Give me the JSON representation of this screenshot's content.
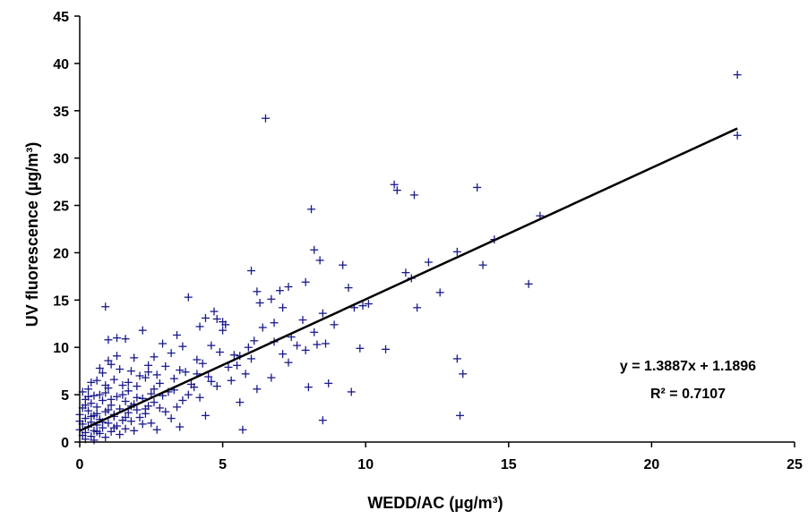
{
  "chart_data": {
    "type": "scatter",
    "xlabel": "WEDD/AC (µg/m³)",
    "ylabel": "UV fluorescence (µg/m³)",
    "xlim": [
      0,
      25
    ],
    "ylim": [
      0,
      45
    ],
    "xticks": [
      0,
      5,
      10,
      15,
      20,
      25
    ],
    "yticks": [
      0,
      5,
      10,
      15,
      20,
      25,
      30,
      35,
      40,
      45
    ],
    "grid": false,
    "marker": "+",
    "colors": {
      "points": "#1a1a8c",
      "trendline": "#000000"
    },
    "trendline": {
      "slope": 1.3887,
      "intercept": 1.1896,
      "equation": "y = 1.3887x + 1.1896",
      "r2_label": "R² = 0.7107"
    },
    "points": [
      [
        23.0,
        38.8
      ],
      [
        23.0,
        32.4
      ],
      [
        6.5,
        34.2
      ],
      [
        11.0,
        27.2
      ],
      [
        11.1,
        26.6
      ],
      [
        11.7,
        26.1
      ],
      [
        13.9,
        26.9
      ],
      [
        8.1,
        24.6
      ],
      [
        16.1,
        23.9
      ],
      [
        14.5,
        21.4
      ],
      [
        8.2,
        20.3
      ],
      [
        13.2,
        20.1
      ],
      [
        8.4,
        19.2
      ],
      [
        9.2,
        18.7
      ],
      [
        12.2,
        19.0
      ],
      [
        14.1,
        18.7
      ],
      [
        6.0,
        18.1
      ],
      [
        11.4,
        17.9
      ],
      [
        11.6,
        17.3
      ],
      [
        7.9,
        16.9
      ],
      [
        15.7,
        16.7
      ],
      [
        6.2,
        15.9
      ],
      [
        7.0,
        16.0
      ],
      [
        7.3,
        16.4
      ],
      [
        9.4,
        16.3
      ],
      [
        12.6,
        15.8
      ],
      [
        3.8,
        15.3
      ],
      [
        6.7,
        15.1
      ],
      [
        6.3,
        14.7
      ],
      [
        0.9,
        14.3
      ],
      [
        7.1,
        14.2
      ],
      [
        9.6,
        14.2
      ],
      [
        11.8,
        14.2
      ],
      [
        9.9,
        14.4
      ],
      [
        8.5,
        13.6
      ],
      [
        4.7,
        13.8
      ],
      [
        4.4,
        13.1
      ],
      [
        4.8,
        13.0
      ],
      [
        5.0,
        12.7
      ],
      [
        6.8,
        12.6
      ],
      [
        4.2,
        12.2
      ],
      [
        5.1,
        12.4
      ],
      [
        2.2,
        11.8
      ],
      [
        3.4,
        11.3
      ],
      [
        8.2,
        11.6
      ],
      [
        1.3,
        11.0
      ],
      [
        1.6,
        10.9
      ],
      [
        6.1,
        10.7
      ],
      [
        6.8,
        10.6
      ],
      [
        7.4,
        11.1
      ],
      [
        8.6,
        10.4
      ],
      [
        2.9,
        10.4
      ],
      [
        3.6,
        10.1
      ],
      [
        5.9,
        10.0
      ],
      [
        7.6,
        10.2
      ],
      [
        8.3,
        10.3
      ],
      [
        9.8,
        9.9
      ],
      [
        10.7,
        9.8
      ],
      [
        4.9,
        9.5
      ],
      [
        5.4,
        9.2
      ],
      [
        7.1,
        9.3
      ],
      [
        7.9,
        9.7
      ],
      [
        2.6,
        9.0
      ],
      [
        3.2,
        9.4
      ],
      [
        1.9,
        8.9
      ],
      [
        4.1,
        8.7
      ],
      [
        5.6,
        9.1
      ],
      [
        6.0,
        8.8
      ],
      [
        7.3,
        8.4
      ],
      [
        13.2,
        8.8
      ],
      [
        1.0,
        8.6
      ],
      [
        1.1,
        8.2
      ],
      [
        2.4,
        8.1
      ],
      [
        3.0,
        8.0
      ],
      [
        4.3,
        8.3
      ],
      [
        0.7,
        7.8
      ],
      [
        1.4,
        7.7
      ],
      [
        1.8,
        7.5
      ],
      [
        3.5,
        7.6
      ],
      [
        5.2,
        7.9
      ],
      [
        13.4,
        7.2
      ],
      [
        0.8,
        7.3
      ],
      [
        2.1,
        7.0
      ],
      [
        2.7,
        7.1
      ],
      [
        3.7,
        7.4
      ],
      [
        4.5,
        6.9
      ],
      [
        5.8,
        7.2
      ],
      [
        6.7,
        6.8
      ],
      [
        1.2,
        6.6
      ],
      [
        2.3,
        6.8
      ],
      [
        0.4,
        6.3
      ],
      [
        0.6,
        6.5
      ],
      [
        2.8,
        6.2
      ],
      [
        3.9,
        6.1
      ],
      [
        4.6,
        6.4
      ],
      [
        8.0,
        5.8
      ],
      [
        8.7,
        6.2
      ],
      [
        1.5,
        6.0
      ],
      [
        2.0,
        5.9
      ],
      [
        0.3,
        5.6
      ],
      [
        1.0,
        5.7
      ],
      [
        3.3,
        5.5
      ],
      [
        4.0,
        5.8
      ],
      [
        6.2,
        5.6
      ],
      [
        0.1,
        5.3
      ],
      [
        0.9,
        5.2
      ],
      [
        1.7,
        5.4
      ],
      [
        2.5,
        5.1
      ],
      [
        3.1,
        5.3
      ],
      [
        9.5,
        5.3
      ],
      [
        0.5,
        4.9
      ],
      [
        1.3,
        4.8
      ],
      [
        2.2,
        4.6
      ],
      [
        2.9,
        4.9
      ],
      [
        4.2,
        4.7
      ],
      [
        0.2,
        4.5
      ],
      [
        0.8,
        4.4
      ],
      [
        1.6,
        4.3
      ],
      [
        2.6,
        4.2
      ],
      [
        3.6,
        4.4
      ],
      [
        5.6,
        4.2
      ],
      [
        0.4,
        4.1
      ],
      [
        1.1,
        3.9
      ],
      [
        1.9,
        4.0
      ],
      [
        2.4,
        3.8
      ],
      [
        3.4,
        3.7
      ],
      [
        0.1,
        3.6
      ],
      [
        0.6,
        3.7
      ],
      [
        1.4,
        3.5
      ],
      [
        2.0,
        3.4
      ],
      [
        2.8,
        3.6
      ],
      [
        0.3,
        3.3
      ],
      [
        0.9,
        3.2
      ],
      [
        1.7,
        3.1
      ],
      [
        2.3,
        3.0
      ],
      [
        3.0,
        3.2
      ],
      [
        4.4,
        2.8
      ],
      [
        13.3,
        2.8
      ],
      [
        0.0,
        2.9
      ],
      [
        0.5,
        2.8
      ],
      [
        1.2,
        2.7
      ],
      [
        2.1,
        2.6
      ],
      [
        0.2,
        2.5
      ],
      [
        0.7,
        2.4
      ],
      [
        1.5,
        2.3
      ],
      [
        3.2,
        2.5
      ],
      [
        8.5,
        2.3
      ],
      [
        0.0,
        2.2
      ],
      [
        0.4,
        2.1
      ],
      [
        1.0,
        2.0
      ],
      [
        1.8,
        2.2
      ],
      [
        2.5,
        2.0
      ],
      [
        0.1,
        1.9
      ],
      [
        0.6,
        1.8
      ],
      [
        1.3,
        1.7
      ],
      [
        2.2,
        1.9
      ],
      [
        0.3,
        1.6
      ],
      [
        0.8,
        1.5
      ],
      [
        1.6,
        1.4
      ],
      [
        5.7,
        1.3
      ],
      [
        0.0,
        1.3
      ],
      [
        0.5,
        1.2
      ],
      [
        1.1,
        1.1
      ],
      [
        1.9,
        1.2
      ],
      [
        0.2,
        1.0
      ],
      [
        0.7,
        0.9
      ],
      [
        1.4,
        0.8
      ],
      [
        0.1,
        0.7
      ],
      [
        0.4,
        0.6
      ],
      [
        0.9,
        0.5
      ],
      [
        0.2,
        0.3
      ],
      [
        0.5,
        0.2
      ],
      [
        3.5,
        1.6
      ],
      [
        2.7,
        1.3
      ],
      [
        1.2,
        2.9
      ],
      [
        0.6,
        3.0
      ],
      [
        1.5,
        5.0
      ],
      [
        2.0,
        4.7
      ],
      [
        0.9,
        6.0
      ],
      [
        1.7,
        6.3
      ],
      [
        2.6,
        5.6
      ],
      [
        3.8,
        5.0
      ],
      [
        4.8,
        5.9
      ],
      [
        5.3,
        6.5
      ],
      [
        3.3,
        6.7
      ],
      [
        4.1,
        7.2
      ],
      [
        2.4,
        7.4
      ],
      [
        1.3,
        9.1
      ],
      [
        1.0,
        10.8
      ],
      [
        5.5,
        8.1
      ],
      [
        4.6,
        10.2
      ],
      [
        5.0,
        11.8
      ],
      [
        6.4,
        12.1
      ],
      [
        7.8,
        12.9
      ],
      [
        8.9,
        12.4
      ],
      [
        10.1,
        14.6
      ],
      [
        0.3,
        4.8
      ],
      [
        0.7,
        5.0
      ],
      [
        1.1,
        4.5
      ],
      [
        1.8,
        3.8
      ],
      [
        0.4,
        2.7
      ],
      [
        1.0,
        3.4
      ],
      [
        1.6,
        2.6
      ],
      [
        2.3,
        3.5
      ],
      [
        0.2,
        3.9
      ],
      [
        0.8,
        2.1
      ],
      [
        1.2,
        1.5
      ],
      [
        0.6,
        1.1
      ]
    ],
    "annotations": [
      "y = 1.3887x + 1.1896",
      "R² = 0.7107"
    ]
  }
}
